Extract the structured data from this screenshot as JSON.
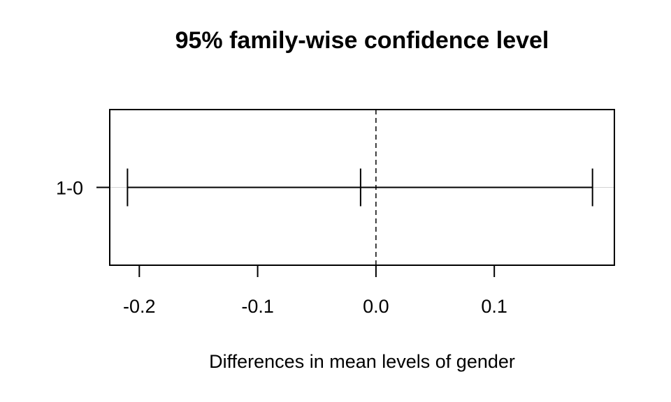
{
  "chart_data": {
    "type": "errorbar",
    "title": "95% family-wise confidence level",
    "xlabel": "Differences in mean levels of gender",
    "ylabel": "",
    "xlim": [
      -0.225,
      0.2015
    ],
    "x_ticks": [
      -0.2,
      -0.1,
      0.0,
      0.1
    ],
    "x_tick_labels": [
      "-0.2",
      "-0.1",
      "0.0",
      "0.1"
    ],
    "reference_line": 0.0,
    "comparisons": [
      {
        "label": "1-0",
        "estimate": -0.013,
        "lower": -0.21,
        "upper": 0.183
      }
    ],
    "grid": false,
    "legend": "none"
  }
}
